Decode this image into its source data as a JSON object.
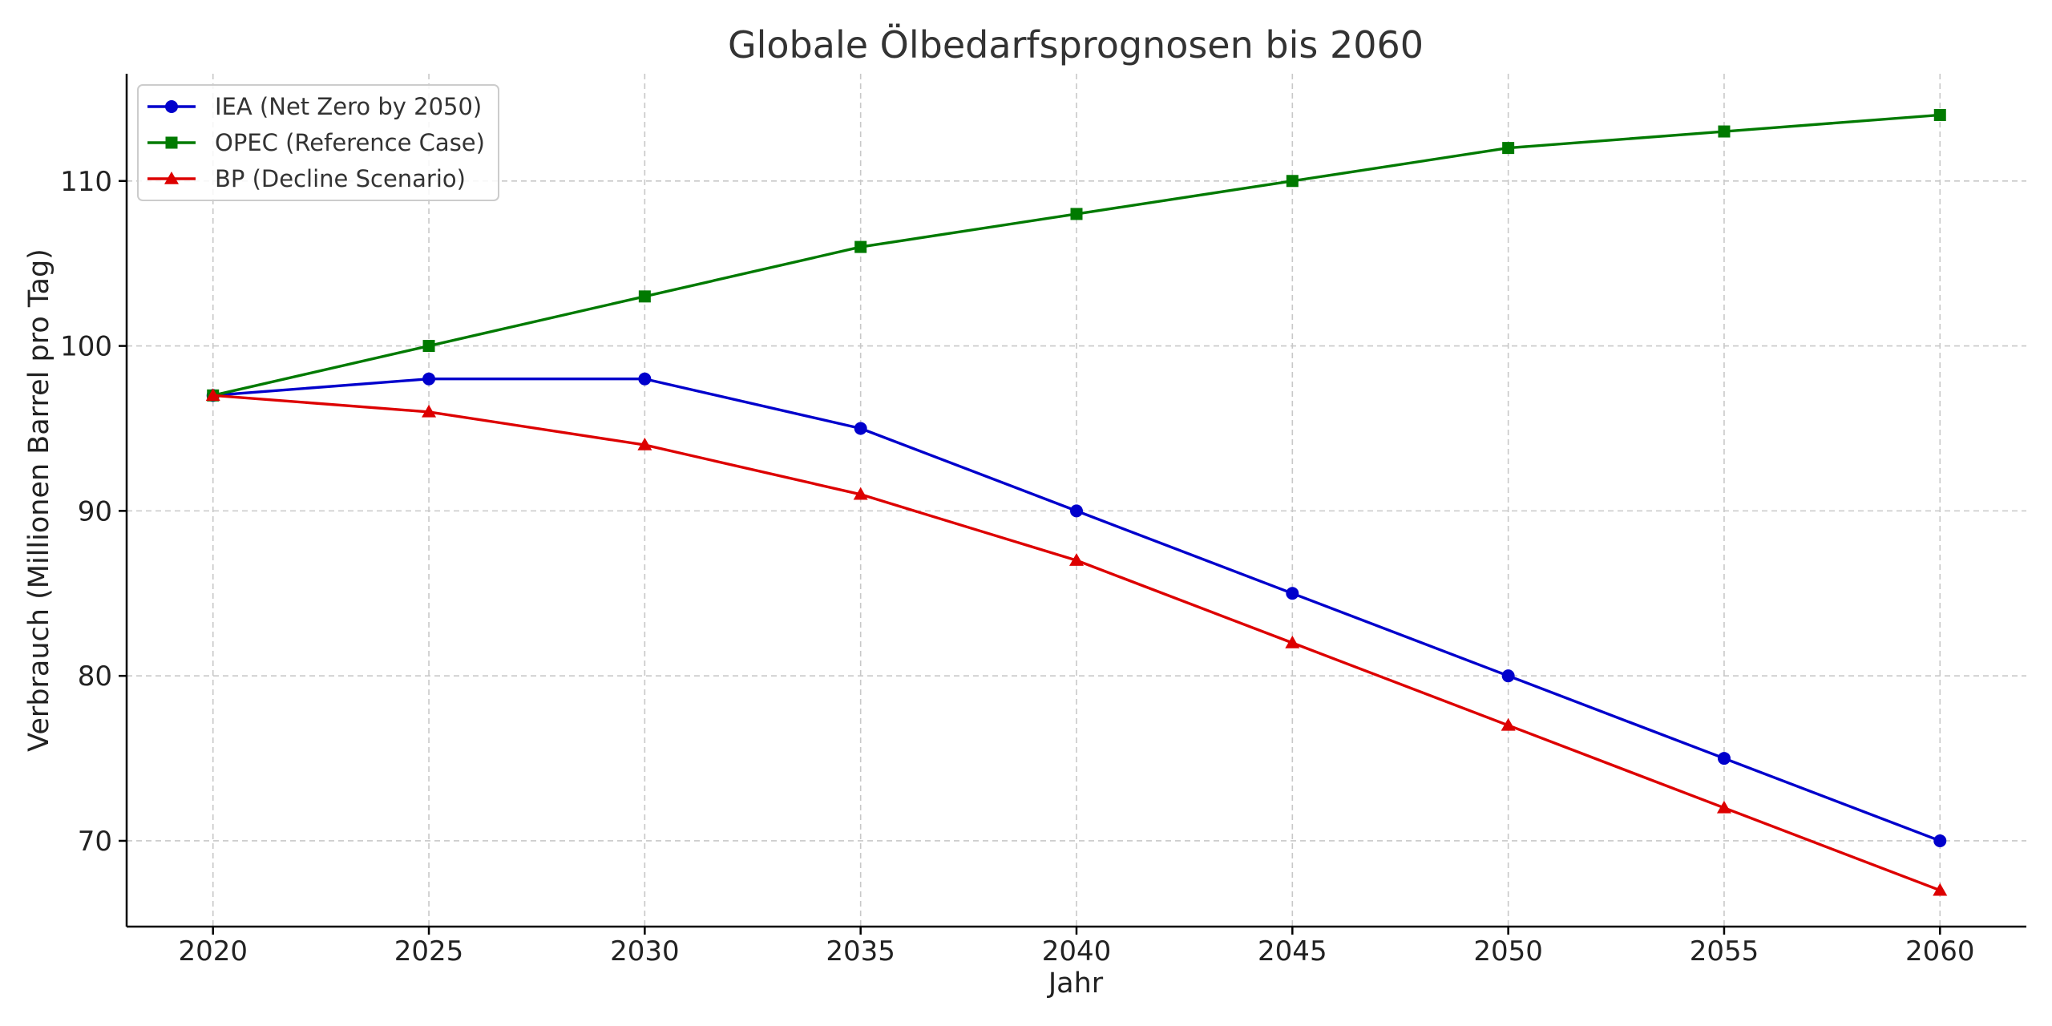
{
  "chart_data": {
    "type": "line",
    "title": "Globale Ölbedarfsprognosen bis 2060",
    "xlabel": "Jahr",
    "ylabel": "Verbrauch (Millionen Barrel pro Tag)",
    "x": [
      2020,
      2025,
      2030,
      2035,
      2040,
      2045,
      2050,
      2055,
      2060
    ],
    "xlim": [
      2018,
      2062
    ],
    "ylim": [
      64.8,
      116.5
    ],
    "xticks": [
      "2020",
      "2025",
      "2030",
      "2035",
      "2040",
      "2045",
      "2050",
      "2055",
      "2060"
    ],
    "yticks": [
      "70",
      "80",
      "90",
      "100",
      "110"
    ],
    "grid": true,
    "legend_position": "top-left",
    "series": [
      {
        "name": "IEA (Net Zero by 2050)",
        "color": "#0000cc",
        "marker": "circle",
        "values": [
          97,
          98,
          98,
          95,
          90,
          85,
          80,
          75,
          70
        ]
      },
      {
        "name": "OPEC (Reference Case)",
        "color": "#007a00",
        "marker": "square",
        "values": [
          97,
          100,
          103,
          106,
          108,
          110,
          112,
          113,
          114
        ]
      },
      {
        "name": "BP (Decline Scenario)",
        "color": "#dd0000",
        "marker": "triangle",
        "values": [
          97,
          96,
          94,
          91,
          87,
          82,
          77,
          72,
          67
        ]
      }
    ]
  }
}
